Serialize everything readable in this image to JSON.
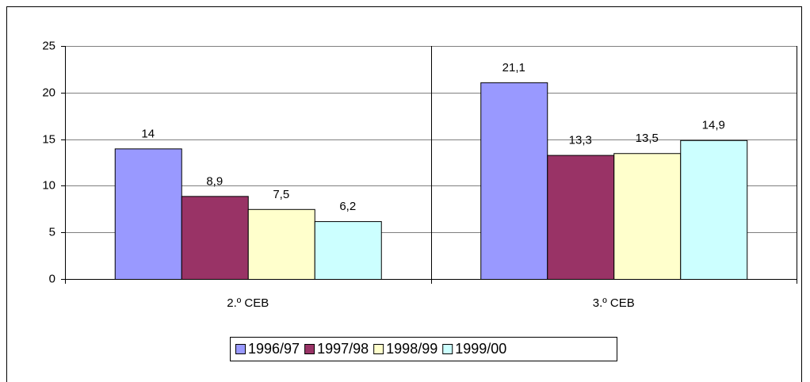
{
  "chart_data": {
    "type": "bar",
    "categories": [
      "2.º CEB",
      "3.º CEB"
    ],
    "series": [
      {
        "name": "1996/97",
        "color": "#9999ff",
        "values": [
          14,
          21.1
        ],
        "value_labels": [
          "14",
          "21,1"
        ]
      },
      {
        "name": "1997/98",
        "color": "#993366",
        "values": [
          8.9,
          13.3
        ],
        "value_labels": [
          "8,9",
          "13,3"
        ]
      },
      {
        "name": "1998/99",
        "color": "#ffffcc",
        "values": [
          7.5,
          13.5
        ],
        "value_labels": [
          "7,5",
          "13,5"
        ]
      },
      {
        "name": "1999/00",
        "color": "#ccffff",
        "values": [
          6.2,
          14.9
        ],
        "value_labels": [
          "6,2",
          "14,9"
        ]
      }
    ],
    "ylim": [
      0,
      25
    ],
    "yticks": [
      0,
      5,
      10,
      15,
      20,
      25
    ],
    "grid": true,
    "legend": "bottom"
  }
}
